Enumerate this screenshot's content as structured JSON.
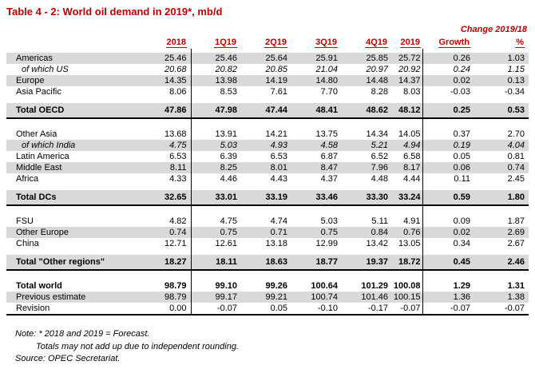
{
  "title": "Table 4 - 2: World oil demand in 2019*, mb/d",
  "accent_color": "#c00000",
  "shade_color": "#d9d9d9",
  "table": {
    "change_header": "Change 2019/18",
    "columns": [
      "2018",
      "1Q19",
      "2Q19",
      "3Q19",
      "4Q19",
      "2019",
      "Growth",
      "%"
    ],
    "sections": [
      {
        "rows": [
          {
            "label": "Americas",
            "shaded": true,
            "italic": false,
            "bold": false,
            "values": [
              "25.46",
              "25.46",
              "25.64",
              "25.91",
              "25.85",
              "25.72",
              "0.26",
              "1.03"
            ]
          },
          {
            "label": "of which US",
            "shaded": false,
            "italic": true,
            "bold": false,
            "values": [
              "20.68",
              "20.82",
              "20.85",
              "21.04",
              "20.97",
              "20.92",
              "0.24",
              "1.15"
            ]
          },
          {
            "label": "Europe",
            "shaded": true,
            "italic": false,
            "bold": false,
            "values": [
              "14.35",
              "13.98",
              "14.19",
              "14.80",
              "14.48",
              "14.37",
              "0.02",
              "0.13"
            ]
          },
          {
            "label": "Asia Pacific",
            "shaded": false,
            "italic": false,
            "bold": false,
            "values": [
              "8.06",
              "8.53",
              "7.61",
              "7.70",
              "8.28",
              "8.03",
              "-0.03",
              "-0.34"
            ]
          }
        ],
        "total": {
          "label": "Total OECD",
          "shaded": true,
          "italic": false,
          "bold": true,
          "values": [
            "47.86",
            "47.98",
            "47.44",
            "48.41",
            "48.62",
            "48.12",
            "0.25",
            "0.53"
          ]
        }
      },
      {
        "rows": [
          {
            "label": "Other Asia",
            "shaded": false,
            "italic": false,
            "bold": false,
            "values": [
              "13.68",
              "13.91",
              "14.21",
              "13.75",
              "14.34",
              "14.05",
              "0.37",
              "2.70"
            ]
          },
          {
            "label": "of which India",
            "shaded": true,
            "italic": true,
            "bold": false,
            "values": [
              "4.75",
              "5.03",
              "4.93",
              "4.58",
              "5.21",
              "4.94",
              "0.19",
              "4.04"
            ]
          },
          {
            "label": "Latin America",
            "shaded": false,
            "italic": false,
            "bold": false,
            "values": [
              "6.53",
              "6.39",
              "6.53",
              "6.87",
              "6.52",
              "6.58",
              "0.05",
              "0.81"
            ]
          },
          {
            "label": "Middle East",
            "shaded": true,
            "italic": false,
            "bold": false,
            "values": [
              "8.11",
              "8.25",
              "8.01",
              "8.47",
              "7.96",
              "8.17",
              "0.06",
              "0.74"
            ]
          },
          {
            "label": "Africa",
            "shaded": false,
            "italic": false,
            "bold": false,
            "values": [
              "4.33",
              "4.46",
              "4.43",
              "4.37",
              "4.48",
              "4.44",
              "0.11",
              "2.45"
            ]
          }
        ],
        "total": {
          "label": "Total DCs",
          "shaded": true,
          "italic": false,
          "bold": true,
          "values": [
            "32.65",
            "33.01",
            "33.19",
            "33.46",
            "33.30",
            "33.24",
            "0.59",
            "1.80"
          ]
        }
      },
      {
        "rows": [
          {
            "label": "FSU",
            "shaded": false,
            "italic": false,
            "bold": false,
            "values": [
              "4.82",
              "4.75",
              "4.74",
              "5.03",
              "5.11",
              "4.91",
              "0.09",
              "1.87"
            ]
          },
          {
            "label": "Other Europe",
            "shaded": true,
            "italic": false,
            "bold": false,
            "values": [
              "0.74",
              "0.75",
              "0.71",
              "0.75",
              "0.84",
              "0.76",
              "0.02",
              "2.69"
            ]
          },
          {
            "label": "China",
            "shaded": false,
            "italic": false,
            "bold": false,
            "values": [
              "12.71",
              "12.61",
              "13.18",
              "12.99",
              "13.42",
              "13.05",
              "0.34",
              "2.67"
            ]
          }
        ],
        "total": {
          "label": "Total \"Other regions\"",
          "shaded": true,
          "italic": false,
          "bold": true,
          "values": [
            "18.27",
            "18.11",
            "18.63",
            "18.77",
            "19.37",
            "18.72",
            "0.45",
            "2.46"
          ]
        }
      },
      {
        "rows": [
          {
            "label": "Total world",
            "shaded": false,
            "italic": false,
            "bold": true,
            "values": [
              "98.79",
              "99.10",
              "99.26",
              "100.64",
              "101.29",
              "100.08",
              "1.29",
              "1.31"
            ]
          },
          {
            "label": "Previous estimate",
            "shaded": true,
            "italic": false,
            "bold": false,
            "values": [
              "98.79",
              "99.17",
              "99.21",
              "100.74",
              "101.46",
              "100.15",
              "1.36",
              "1.38"
            ]
          },
          {
            "label": "Revision",
            "shaded": false,
            "italic": false,
            "bold": false,
            "values": [
              "0.00",
              "-0.07",
              "0.05",
              "-0.10",
              "-0.17",
              "-0.07",
              "-0.07",
              "-0.07"
            ]
          }
        ]
      }
    ]
  },
  "notes": {
    "note_line1": "Note: * 2018 and 2019 = Forecast.",
    "note_line2": "Totals may not add up due to independent rounding.",
    "source": "Source: OPEC Secretariat."
  }
}
